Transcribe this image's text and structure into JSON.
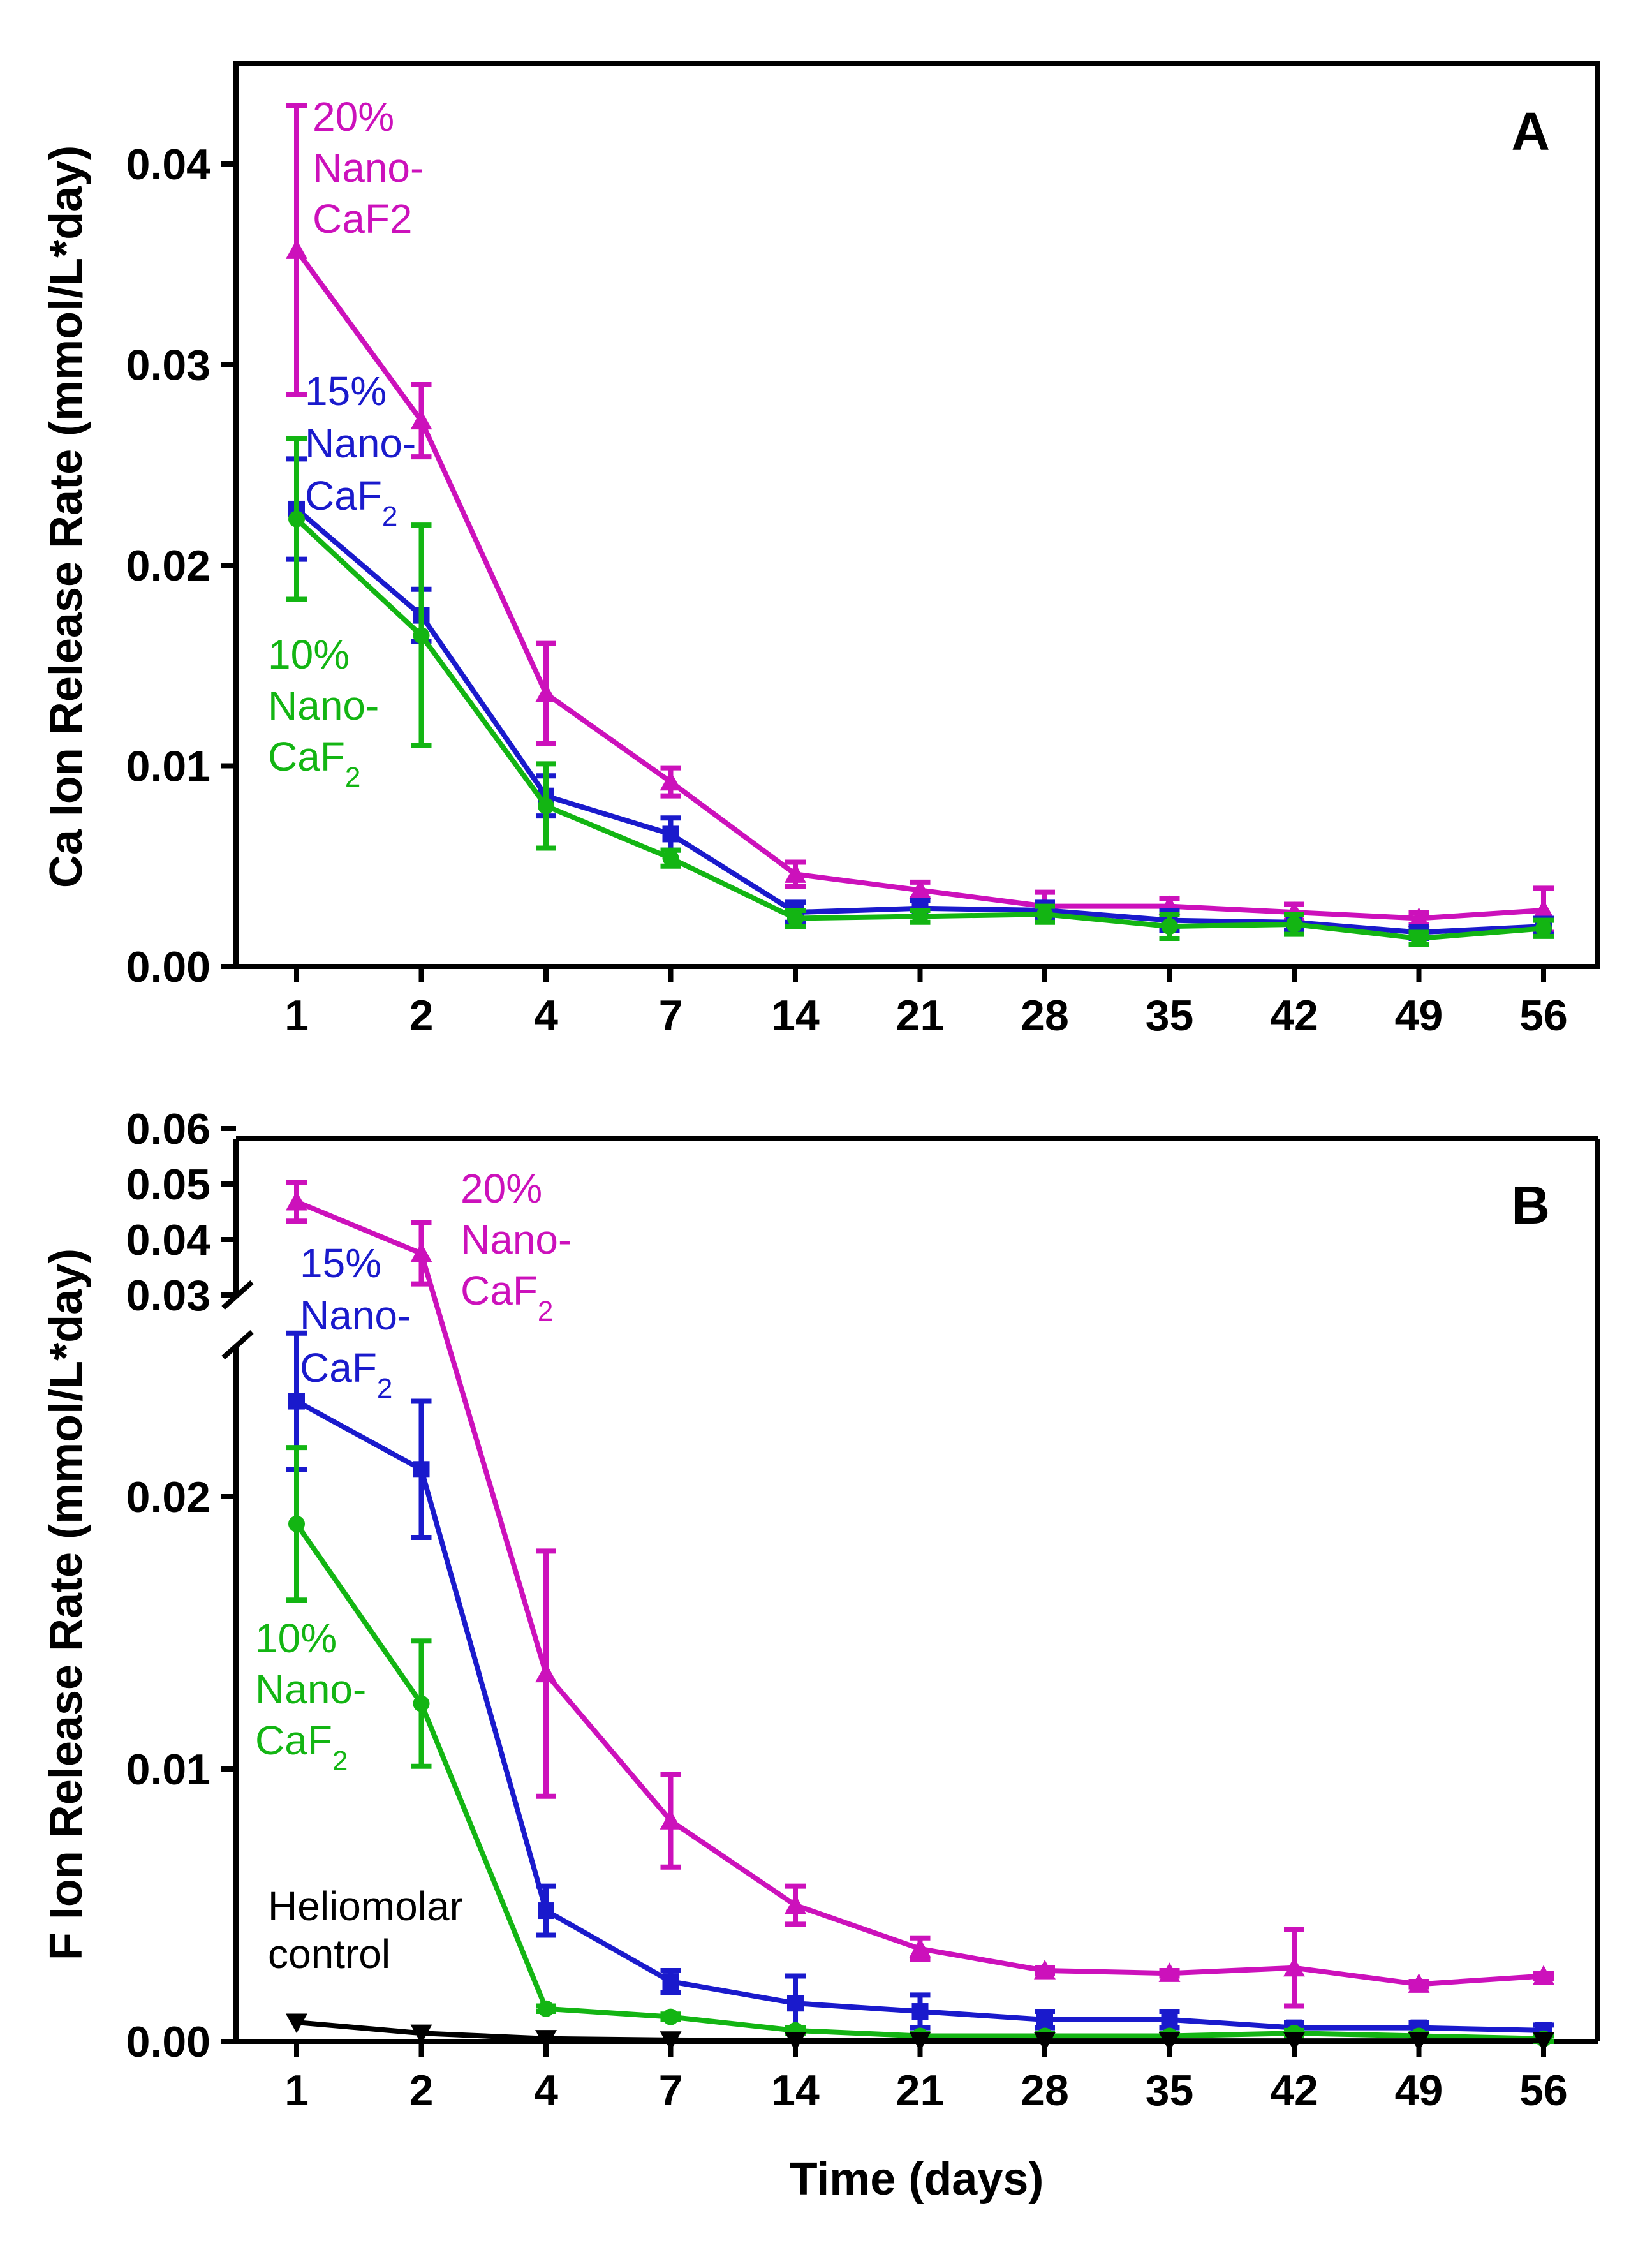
{
  "figure": {
    "xlabel": "Time (days)"
  },
  "colors": {
    "p20": "#cc11bb",
    "p15": "#1a1acc",
    "p10": "#13b513",
    "control": "#000000"
  },
  "chart_data": [
    {
      "panel": "A",
      "type": "line",
      "ylabel": "Ca Ion Release Rate (mmol/L*day)",
      "xlabel": "",
      "categories": [
        "1",
        "2",
        "4",
        "7",
        "14",
        "21",
        "28",
        "35",
        "42",
        "49",
        "56"
      ],
      "ylim": [
        0,
        0.045
      ],
      "yticks": [
        0,
        0.01,
        0.02,
        0.03,
        0.04
      ],
      "ytick_labels": [
        "0.00",
        "0.01",
        "0.02",
        "0.03",
        "0.04"
      ],
      "series": [
        {
          "key": "p20",
          "name": "20% Nano-CaF2",
          "marker": "triangle-up",
          "values": [
            0.0357,
            0.0272,
            0.0136,
            0.0092,
            0.0046,
            0.0038,
            0.003,
            0.003,
            0.0027,
            0.0024,
            0.0028
          ],
          "errors": [
            0.0072,
            0.0018,
            0.0025,
            0.0007,
            0.0006,
            0.0004,
            0.0007,
            0.0004,
            0.0004,
            0.0003,
            0.0011
          ]
        },
        {
          "key": "p15",
          "name": "15% Nano-CaF2",
          "marker": "square",
          "values": [
            0.0228,
            0.0175,
            0.0085,
            0.0066,
            0.0027,
            0.0029,
            0.0028,
            0.0023,
            0.0022,
            0.0017,
            0.002
          ],
          "errors": [
            0.0025,
            0.0013,
            0.001,
            0.0008,
            0.0005,
            0.0004,
            0.0004,
            0.0005,
            0.0004,
            0.0003,
            0.0004
          ]
        },
        {
          "key": "p10",
          "name": "10% Nano-CaF2",
          "marker": "circle",
          "values": [
            0.0223,
            0.0165,
            0.008,
            0.0054,
            0.0024,
            0.0025,
            0.0026,
            0.002,
            0.0021,
            0.0014,
            0.0019
          ],
          "errors": [
            0.004,
            0.0055,
            0.0021,
            0.0004,
            0.0004,
            0.0003,
            0.0004,
            0.0006,
            0.0005,
            0.0003,
            0.0004
          ]
        }
      ],
      "annotations": [
        {
          "key": "p20",
          "lines": [
            [
              "20%"
            ],
            [
              "Nano-"
            ],
            [
              "CaF2"
            ]
          ]
        },
        {
          "key": "p15",
          "lines": [
            [
              "15%"
            ],
            [
              "Nano-"
            ],
            [
              "CaF",
              "2"
            ]
          ]
        },
        {
          "key": "p10",
          "lines": [
            [
              "10%"
            ],
            [
              "Nano-"
            ],
            [
              "CaF",
              "2"
            ]
          ]
        }
      ]
    },
    {
      "panel": "B",
      "type": "line",
      "ylabel": "F Ion Release Rate (mmol/L*day)",
      "xlabel": "Time (days)",
      "categories": [
        "1",
        "2",
        "4",
        "7",
        "14",
        "21",
        "28",
        "35",
        "42",
        "49",
        "56"
      ],
      "y_axis_break": {
        "lower_range": [
          0,
          0.027
        ],
        "upper_range": [
          0.03,
          0.06
        ]
      },
      "yticks": [
        0,
        0.01,
        0.02,
        0.03,
        0.04,
        0.05,
        0.06
      ],
      "ytick_labels": [
        "0.00",
        "0.01",
        "0.02",
        "0.03",
        "0.04",
        "0.05",
        "0.06"
      ],
      "series": [
        {
          "key": "p20",
          "name": "20% Nano-CaF2",
          "marker": "triangle-up",
          "values": [
            0.0468,
            0.0375,
            0.0135,
            0.0081,
            0.005,
            0.0034,
            0.0026,
            0.0025,
            0.0027,
            0.0021,
            0.0024
          ],
          "errors": [
            0.0035,
            0.0055,
            0.0045,
            0.0017,
            0.0007,
            0.0004,
            0.0001,
            0.0001,
            0.0014,
            0.0001,
            0.0001
          ]
        },
        {
          "key": "p15",
          "name": "15% Nano-CaF2",
          "marker": "square",
          "values": [
            0.0235,
            0.021,
            0.0048,
            0.0022,
            0.0014,
            0.0011,
            0.0008,
            0.0008,
            0.0005,
            0.0005,
            0.0004
          ],
          "errors": [
            0.0025,
            0.0025,
            0.0009,
            0.0004,
            0.001,
            0.0006,
            0.0003,
            0.0003,
            0.0002,
            0.0002,
            0.0002
          ]
        },
        {
          "key": "p10",
          "name": "10% Nano-CaF2",
          "marker": "circle",
          "values": [
            0.019,
            0.0124,
            0.0012,
            0.0009,
            0.0004,
            0.0002,
            0.0002,
            0.0002,
            0.0003,
            0.0002,
            0.0001
          ],
          "errors": [
            0.0028,
            0.0023,
            0.0001,
            0.0001,
            0.0001,
            0.0001,
            0.0001,
            0.0001,
            0.0001,
            0.0001,
            0.0001
          ]
        },
        {
          "key": "control",
          "name": "Heliomolar control",
          "marker": "triangle-down",
          "values": [
            0.0007,
            0.0003,
            0.0001,
            5e-05,
            3e-05,
            3e-05,
            2e-05,
            2e-05,
            2e-05,
            2e-05,
            2e-05
          ],
          "errors": [
            0,
            0,
            0,
            0,
            0,
            0,
            0,
            0,
            0,
            0,
            0
          ]
        }
      ],
      "annotations": [
        {
          "key": "p20",
          "lines": [
            [
              "20%"
            ],
            [
              "Nano-"
            ],
            [
              "CaF",
              "2"
            ]
          ]
        },
        {
          "key": "p15",
          "lines": [
            [
              "15%"
            ],
            [
              "Nano-"
            ],
            [
              "CaF",
              "2"
            ]
          ]
        },
        {
          "key": "p10",
          "lines": [
            [
              "10%"
            ],
            [
              "Nano-"
            ],
            [
              "CaF",
              "2"
            ]
          ]
        },
        {
          "key": "control",
          "lines": [
            [
              "Heliomolar"
            ],
            [
              "control"
            ]
          ]
        }
      ]
    }
  ]
}
